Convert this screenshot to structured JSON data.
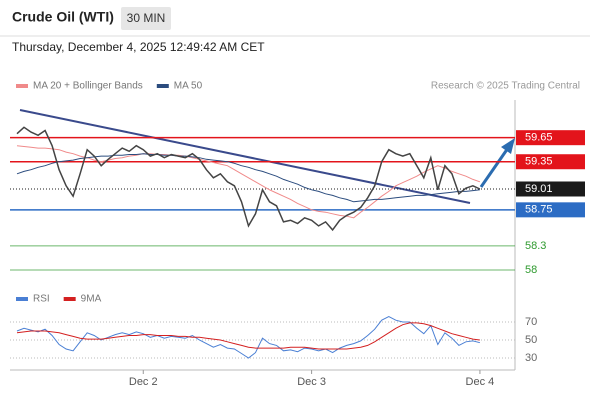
{
  "header": {
    "title": "Crude Oil (WTI)",
    "timeframe": "30 MIN",
    "timestamp": "Thursday, December 4, 2025 12:49:42 AM CET"
  },
  "chart_data": [
    {
      "type": "line",
      "credit": "Research © 2025 Trading Central",
      "xlim": [
        -1,
        71
      ],
      "ylim": [
        57.75,
        60.12
      ],
      "price": {
        "color": "#444444",
        "values": [
          59.7,
          59.78,
          59.72,
          59.68,
          59.74,
          59.55,
          59.25,
          59.05,
          58.92,
          59.2,
          59.5,
          59.42,
          59.3,
          59.38,
          59.45,
          59.52,
          59.48,
          59.55,
          59.5,
          59.42,
          59.45,
          59.4,
          59.44,
          59.42,
          59.4,
          59.45,
          59.38,
          59.25,
          59.15,
          59.2,
          59.1,
          59.05,
          58.85,
          58.55,
          58.7,
          59.0,
          58.85,
          58.8,
          58.6,
          58.62,
          58.58,
          58.65,
          58.62,
          58.55,
          58.6,
          58.5,
          58.62,
          58.68,
          58.72,
          58.78,
          58.9,
          59.05,
          59.35,
          59.5,
          59.45,
          59.42,
          59.45,
          59.3,
          59.15,
          59.4,
          59.0,
          59.3,
          59.2,
          58.95,
          59.02,
          59.05,
          59.01
        ]
      },
      "series": [
        {
          "name": "MA 20 + Bollinger Bands",
          "color": "#f08a8a",
          "values": [
            59.55,
            59.54,
            59.53,
            59.52,
            59.52,
            59.51,
            59.5,
            59.47,
            59.45,
            59.42,
            59.4,
            59.37,
            59.35,
            59.37,
            59.39,
            59.4,
            59.42,
            59.43,
            59.45,
            59.45,
            59.44,
            59.44,
            59.43,
            59.43,
            59.42,
            59.4,
            59.38,
            59.36,
            59.34,
            59.32,
            59.3,
            59.25,
            59.2,
            59.15,
            59.1,
            59.05,
            59.0,
            58.96,
            58.92,
            58.88,
            58.83,
            58.79,
            58.75,
            58.73,
            58.72,
            58.7,
            58.68,
            58.67,
            58.65,
            58.72,
            58.78,
            58.85,
            58.92,
            58.98,
            59.05,
            59.09,
            59.13,
            59.17,
            59.22,
            59.26,
            59.3,
            59.27,
            59.23,
            59.2,
            59.17,
            59.13,
            59.1
          ]
        },
        {
          "name": "MA 50",
          "color": "#2b4c7e",
          "values": [
            59.2,
            59.23,
            59.25,
            59.28,
            59.3,
            59.33,
            59.35,
            59.36,
            59.37,
            59.39,
            59.4,
            59.41,
            59.42,
            59.42,
            59.43,
            59.43,
            59.44,
            59.44,
            59.45,
            59.44,
            59.44,
            59.43,
            59.43,
            59.42,
            59.42,
            59.41,
            59.4,
            59.38,
            59.37,
            59.36,
            59.35,
            59.33,
            59.3,
            59.28,
            59.25,
            59.23,
            59.2,
            59.17,
            59.13,
            59.1,
            59.07,
            59.03,
            59.0,
            58.98,
            58.95,
            58.93,
            58.9,
            58.88,
            58.85,
            58.86,
            58.87,
            58.88,
            58.88,
            58.89,
            58.9,
            58.91,
            58.92,
            58.93,
            58.93,
            58.94,
            58.95,
            58.96,
            58.97,
            58.98,
            58.98,
            58.99,
            59.0
          ]
        }
      ],
      "levels": [
        {
          "value": 59.65,
          "color": "#e3141b",
          "boxed": true,
          "dotted": false
        },
        {
          "value": 59.35,
          "color": "#e3141b",
          "boxed": true,
          "dotted": false
        },
        {
          "value": 59.01,
          "color": "#1a1a1a",
          "boxed": true,
          "dotted": true
        },
        {
          "value": 58.75,
          "color": "#2c6cc4",
          "boxed": true,
          "dotted": false
        },
        {
          "value": 58.3,
          "color": "#2e9a2e",
          "boxed": false,
          "dotted": false
        },
        {
          "value": 58.0,
          "color": "#2e9a2e",
          "boxed": false,
          "dotted": false
        }
      ]
    },
    {
      "type": "line",
      "xlim": [
        -1,
        71
      ],
      "ylim": [
        15,
        85
      ],
      "yticks": [
        70,
        50,
        30
      ],
      "grid": true,
      "xticks": [
        {
          "value": 18,
          "label": "Dec 2"
        },
        {
          "value": 42,
          "label": "Dec 3"
        },
        {
          "value": 66,
          "label": "Dec 4"
        }
      ],
      "series": [
        {
          "name": "RSI",
          "color": "#4a7fd4",
          "values": [
            60,
            63,
            61,
            59,
            62,
            55,
            45,
            40,
            38,
            48,
            58,
            55,
            50,
            53,
            56,
            58,
            56,
            59,
            57,
            53,
            55,
            52,
            54,
            53,
            52,
            55,
            50,
            46,
            42,
            45,
            41,
            40,
            35,
            30,
            36,
            52,
            46,
            44,
            38,
            39,
            37,
            41,
            40,
            38,
            40,
            36,
            41,
            44,
            46,
            49,
            55,
            62,
            72,
            76,
            72,
            70,
            70,
            63,
            57,
            66,
            45,
            58,
            52,
            44,
            48,
            49,
            47
          ]
        },
        {
          "name": "9MA",
          "color": "#d42020",
          "values": [
            58,
            59,
            60,
            60,
            60,
            59,
            58,
            56,
            54,
            52,
            51,
            51,
            51,
            52,
            53,
            54,
            55,
            55,
            56,
            56,
            55,
            55,
            55,
            54,
            54,
            53,
            53,
            52,
            51,
            50,
            48,
            46,
            44,
            42,
            41,
            41,
            41,
            41,
            41,
            42,
            42,
            42,
            41,
            40,
            40,
            40,
            40,
            40,
            41,
            42,
            44,
            48,
            53,
            58,
            63,
            67,
            69,
            69,
            68,
            66,
            63,
            60,
            57,
            55,
            53,
            51,
            50
          ]
        }
      ]
    }
  ]
}
